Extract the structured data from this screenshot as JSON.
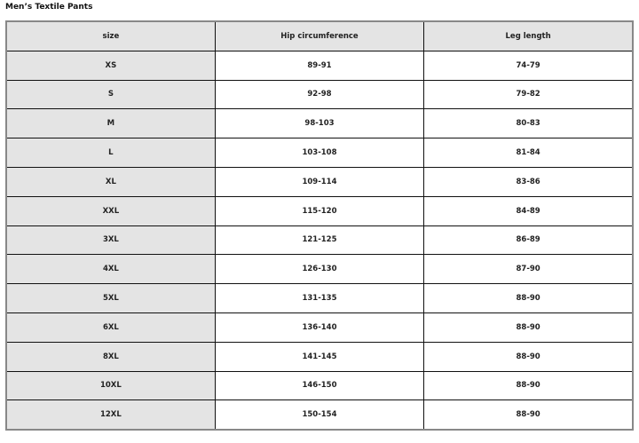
{
  "title": "Men’s Textile Pants",
  "headers": [
    "size",
    "Hip circumference",
    "Leg length"
  ],
  "rows": [
    [
      "XS",
      "89-91",
      "74-79"
    ],
    [
      "S",
      "92-98",
      "79-82"
    ],
    [
      "M",
      "98-103",
      "80-83"
    ],
    [
      "L",
      "103-108",
      "81-84"
    ],
    [
      "XL",
      "109-114",
      "83-86"
    ],
    [
      "XXL",
      "115-120",
      "84-89"
    ],
    [
      "3XL",
      "121-125",
      "86-89"
    ],
    [
      "4XL",
      "126-130",
      "87-90"
    ],
    [
      "5XL",
      "131-135",
      "88-90"
    ],
    [
      "6XL",
      "136-140",
      "88-90"
    ],
    [
      "8XL",
      "141-145",
      "88-90"
    ],
    [
      "10XL",
      "146-150",
      "88-90"
    ],
    [
      "12XL",
      "150-154",
      "88-90"
    ]
  ]
}
